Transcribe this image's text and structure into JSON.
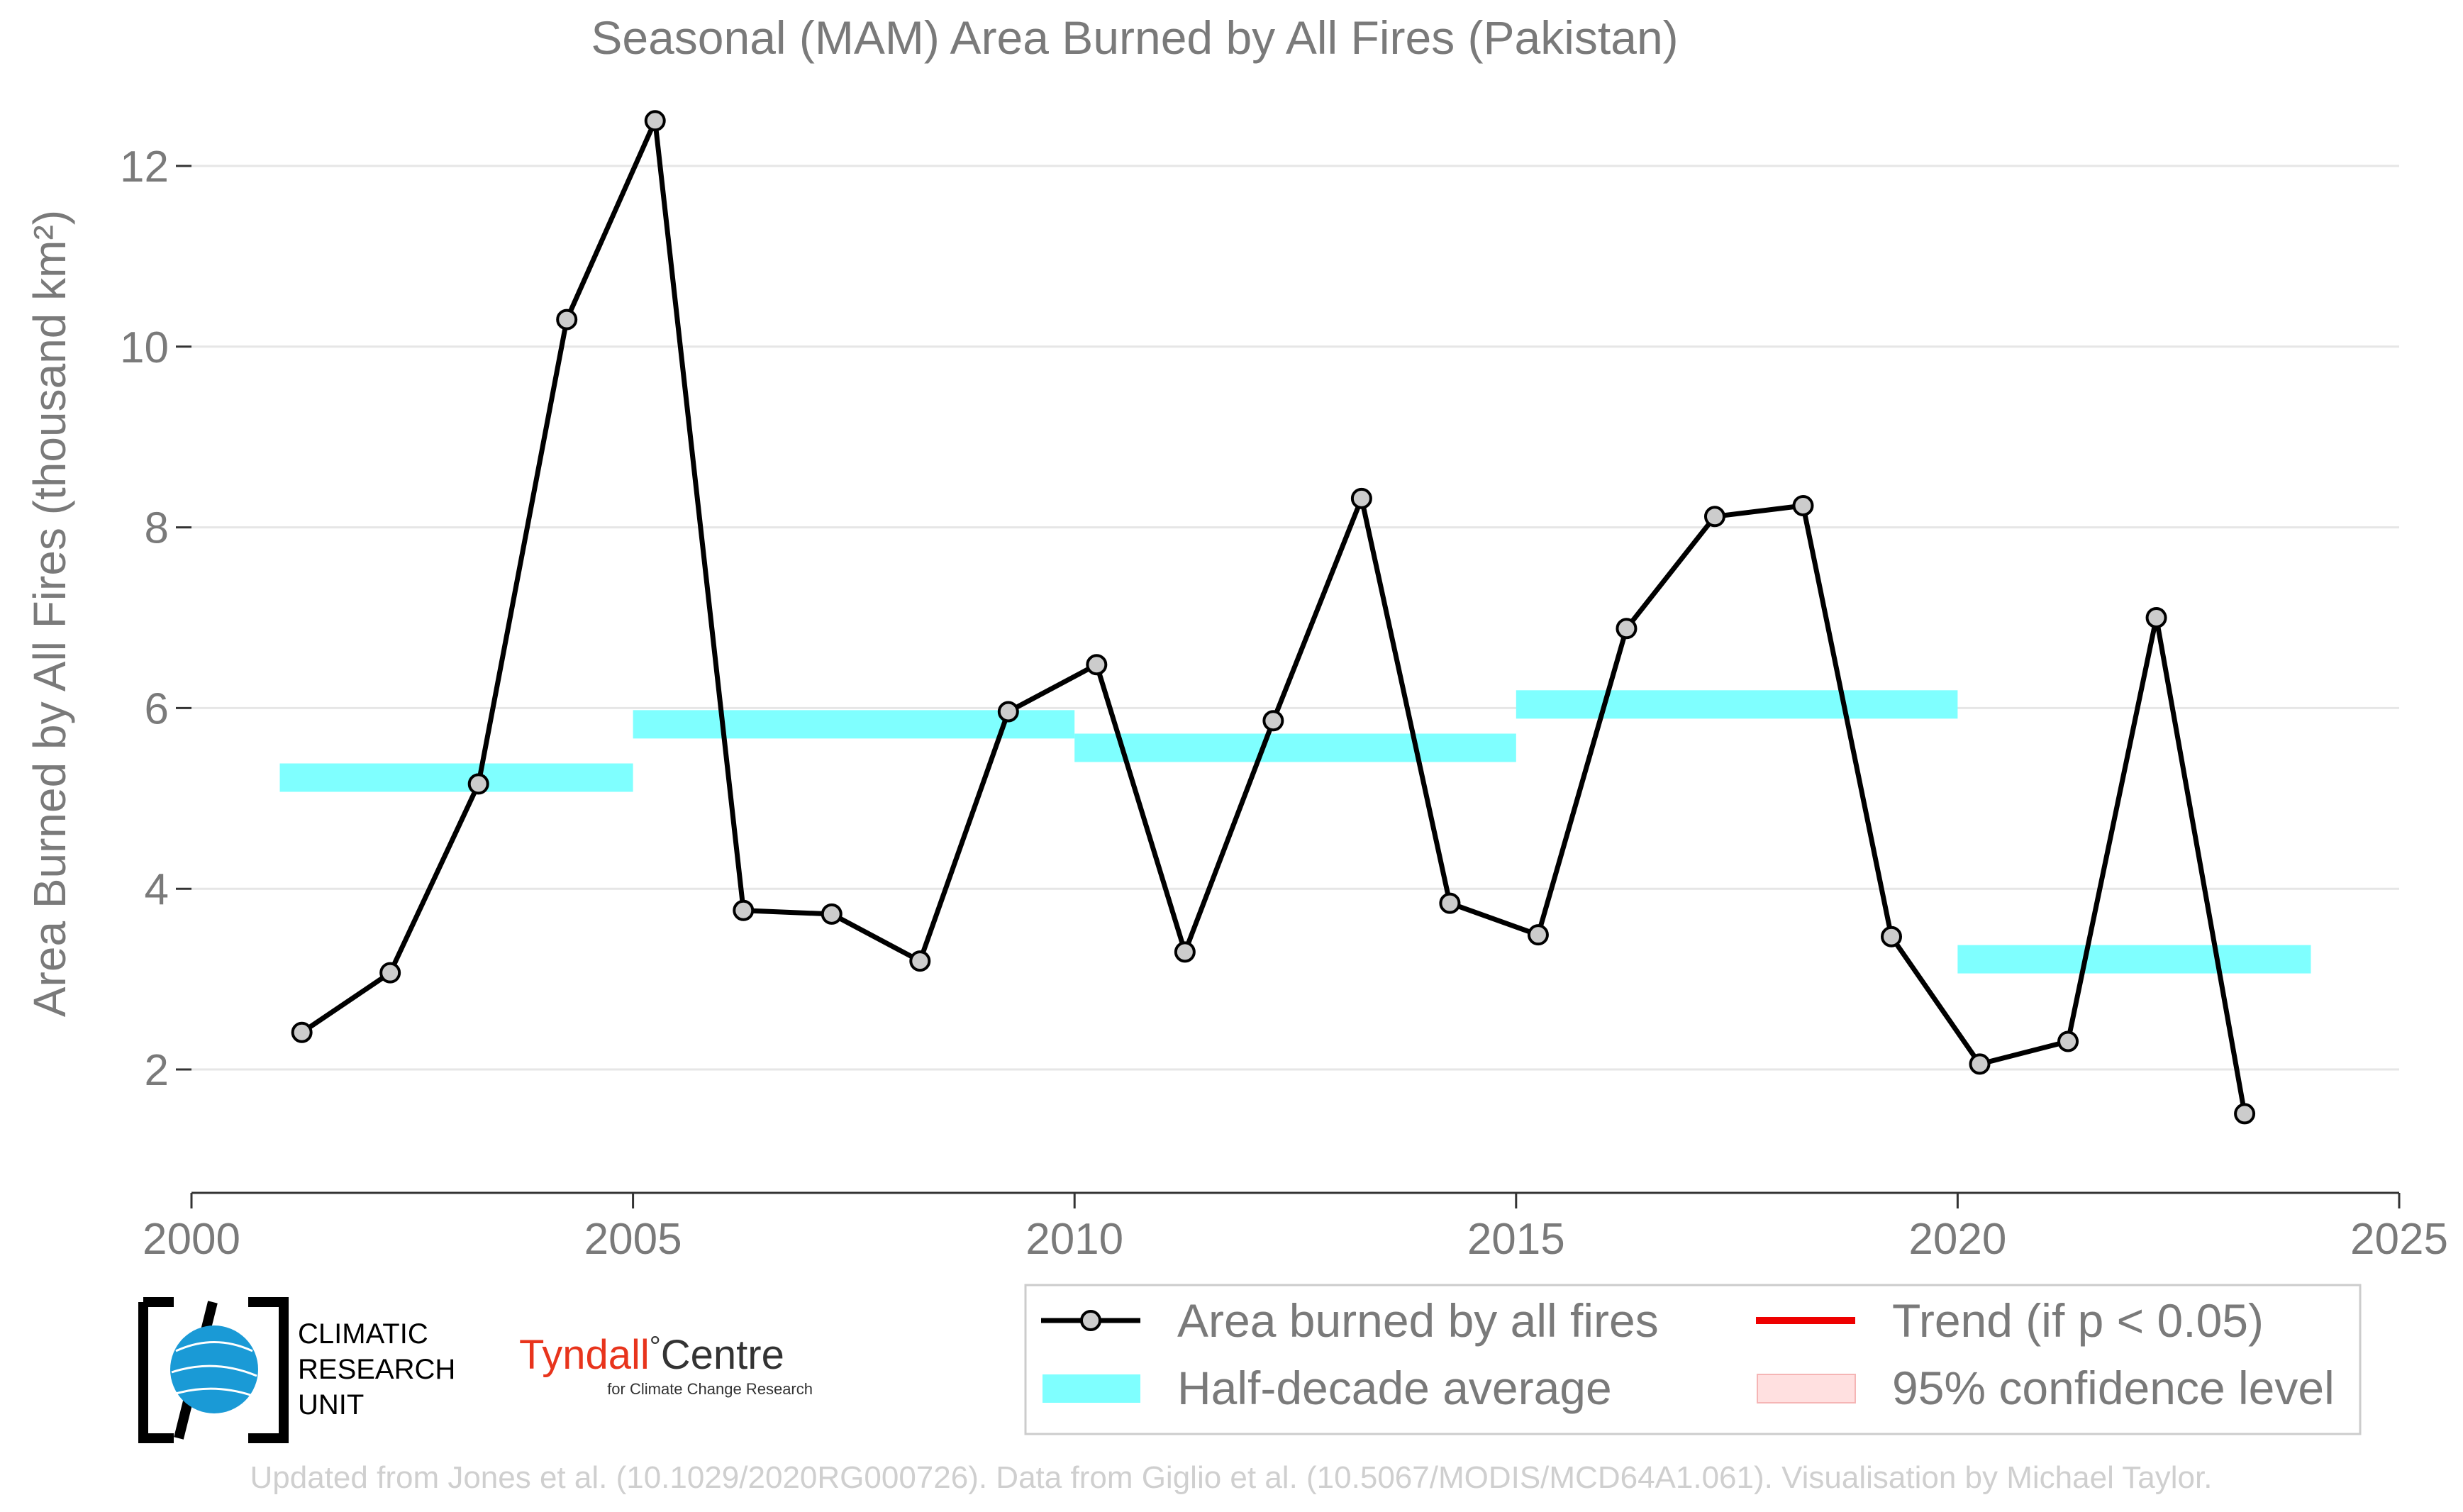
{
  "chart_data": {
    "type": "line",
    "title": "Seasonal (MAM) Area Burned by All Fires (Pakistan)",
    "xlabel": "",
    "ylabel": "Area Burned by All Fires (thousand km²)",
    "xlim": [
      2000,
      2025
    ],
    "ylim": [
      0.6,
      13.0
    ],
    "x_ticks": [
      2000,
      2005,
      2010,
      2015,
      2020,
      2025
    ],
    "y_ticks": [
      2,
      4,
      6,
      8,
      10,
      12
    ],
    "grid": "horizontal",
    "legend_position": "bottom-right",
    "series": [
      {
        "name": "Area burned by all fires",
        "color": "#000000",
        "marker_fill": "#cccccc",
        "x": [
          2001.25,
          2002.25,
          2003.25,
          2004.25,
          2005.25,
          2006.25,
          2007.25,
          2008.25,
          2009.25,
          2010.25,
          2011.25,
          2012.25,
          2013.25,
          2014.25,
          2015.25,
          2016.25,
          2017.25,
          2018.25,
          2019.25,
          2020.25,
          2021.25,
          2022.25,
          2023.25
        ],
        "values": [
          2.41,
          3.07,
          5.16,
          10.3,
          12.5,
          3.76,
          3.72,
          3.2,
          5.96,
          6.48,
          3.3,
          5.86,
          8.32,
          3.84,
          3.49,
          6.88,
          8.12,
          8.24,
          3.47,
          2.06,
          2.31,
          7.0,
          1.51
        ]
      }
    ],
    "half_decade_averages": {
      "name": "Half-decade average",
      "color": "#7fffff",
      "segments": [
        {
          "x_start": 2001,
          "x_end": 2005,
          "value": 5.23
        },
        {
          "x_start": 2005,
          "x_end": 2010,
          "value": 5.82
        },
        {
          "x_start": 2010,
          "x_end": 2015,
          "value": 5.56
        },
        {
          "x_start": 2015,
          "x_end": 2020,
          "value": 6.04
        },
        {
          "x_start": 2020,
          "x_end": 2024,
          "value": 3.22
        }
      ]
    },
    "legend": {
      "line_label": "Area burned by all fires",
      "average_label": "Half-decade average",
      "trend_label": "Trend (if p < 0.05)",
      "trend_color": "#ee0000",
      "confidence_label": "95% confidence level",
      "confidence_color": "#ffe0e0"
    }
  },
  "logos": {
    "cru": {
      "line1": "CLIMATIC",
      "line2": "RESEARCH",
      "line3": "UNIT",
      "globe_color": "#1a9ad6"
    },
    "tyndall": {
      "name": "Tyndall",
      "degree": "°",
      "centre": "Centre",
      "tagline": "for Climate Change Research",
      "name_color": "#e8341c"
    }
  },
  "credit": "Updated from Jones et al. (10.1029/2020RG000726). Data from Giglio et al. (10.5067/MODIS/MCD64A1.061). Visualisation by Michael Taylor."
}
